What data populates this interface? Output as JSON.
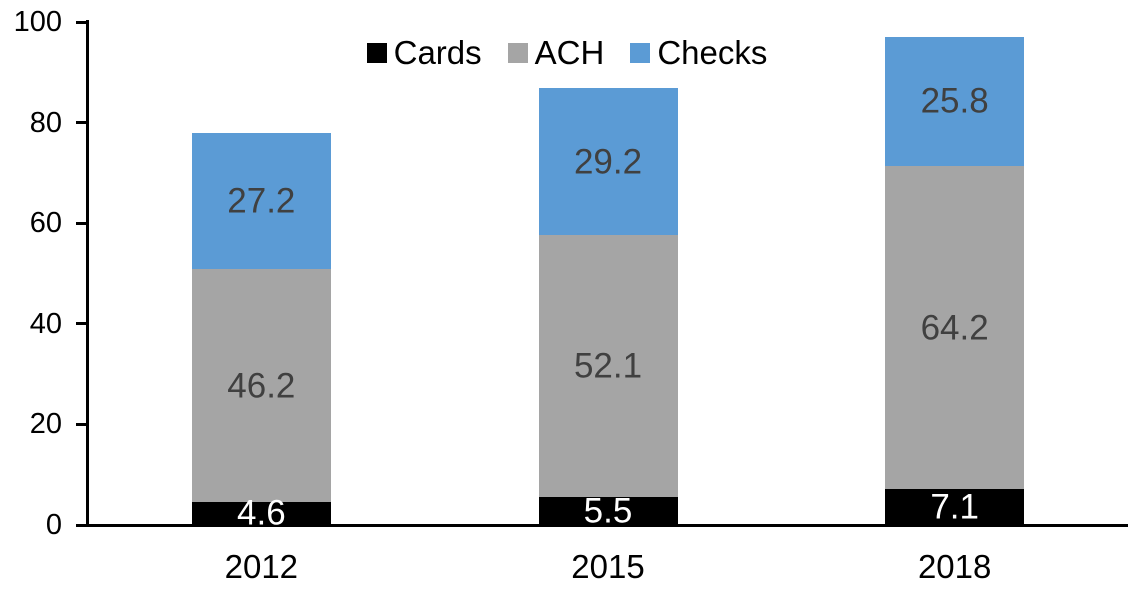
{
  "chart": {
    "background_color": "#FFFFFF",
    "axis_color": "#000000"
  },
  "chart_data": {
    "type": "bar",
    "stacked": true,
    "title": "",
    "xlabel": "",
    "ylabel": "",
    "categories": [
      "2012",
      "2015",
      "2018"
    ],
    "series": [
      {
        "name": "Cards",
        "color": "#000000",
        "label_color": "#FFFFFF",
        "values": [
          4.6,
          5.5,
          7.1
        ]
      },
      {
        "name": "ACH",
        "color": "#A5A5A5",
        "label_color": "#404040",
        "values": [
          46.2,
          52.1,
          64.2
        ]
      },
      {
        "name": "Checks",
        "color": "#5B9BD5",
        "label_color": "#404040",
        "values": [
          27.2,
          29.2,
          25.8
        ]
      }
    ],
    "ylim": [
      0,
      100
    ],
    "yticks": [
      0,
      20,
      40,
      60,
      80,
      100
    ],
    "legend_position": "top",
    "grid": false,
    "value_decimals": 1
  }
}
